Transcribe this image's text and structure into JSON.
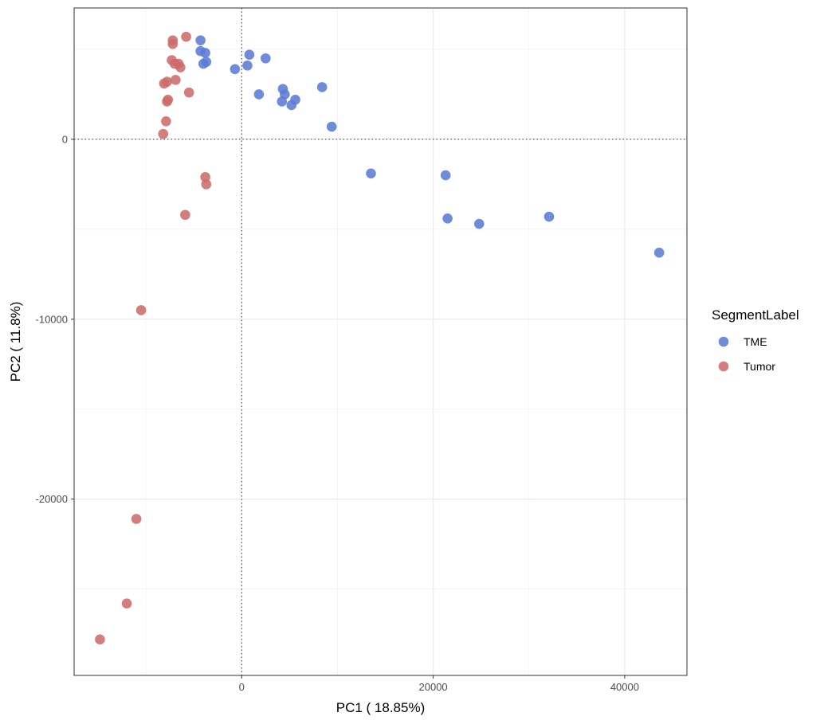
{
  "chart_data": {
    "type": "scatter",
    "xlabel": "PC1 ( 18.85%)",
    "ylabel": "PC2 ( 11.8%)",
    "xlim": [
      -17500,
      46500
    ],
    "ylim": [
      -29800,
      7300
    ],
    "x_ticks": [
      0,
      20000,
      40000
    ],
    "x_tick_labels": [
      "0",
      "20000",
      "40000"
    ],
    "y_ticks": [
      0,
      -10000,
      -20000
    ],
    "y_tick_labels": [
      "0",
      "-10000",
      "-20000"
    ],
    "x_minor_grid": [
      -10000,
      10000,
      30000
    ],
    "y_minor_grid": [
      5000,
      -5000,
      -15000,
      -25000
    ],
    "reference_lines": {
      "x": 0,
      "y": 0,
      "style": "dotted"
    },
    "grid": true,
    "legend": {
      "title": "SegmentLabel",
      "position": "right"
    },
    "series": [
      {
        "name": "TME",
        "color": "#5B7BD5",
        "points": [
          [
            -4300,
            5500
          ],
          [
            -4300,
            4900
          ],
          [
            -3800,
            4800
          ],
          [
            -4000,
            4200
          ],
          [
            -3700,
            4300
          ],
          [
            -700,
            3900
          ],
          [
            600,
            4100
          ],
          [
            800,
            4700
          ],
          [
            2500,
            4500
          ],
          [
            1800,
            2500
          ],
          [
            4300,
            2800
          ],
          [
            4500,
            2500
          ],
          [
            4200,
            2100
          ],
          [
            5200,
            1900
          ],
          [
            5600,
            2200
          ],
          [
            8400,
            2900
          ],
          [
            9400,
            700
          ],
          [
            13500,
            -1900
          ],
          [
            21300,
            -2000
          ],
          [
            21500,
            -4400
          ],
          [
            24800,
            -4700
          ],
          [
            32100,
            -4300
          ],
          [
            43600,
            -6300
          ]
        ]
      },
      {
        "name": "Tumor",
        "color": "#CD6B6B",
        "points": [
          [
            -5800,
            5700
          ],
          [
            -7200,
            5500
          ],
          [
            -7200,
            5300
          ],
          [
            -7300,
            4400
          ],
          [
            -7000,
            4200
          ],
          [
            -6600,
            4200
          ],
          [
            -6400,
            4000
          ],
          [
            -6900,
            3300
          ],
          [
            -7800,
            3200
          ],
          [
            -8100,
            3100
          ],
          [
            -5500,
            2600
          ],
          [
            -7700,
            2200
          ],
          [
            -7800,
            2100
          ],
          [
            -7900,
            1000
          ],
          [
            -8200,
            300
          ],
          [
            -3800,
            -2100
          ],
          [
            -3700,
            -2500
          ],
          [
            -5900,
            -4200
          ],
          [
            -10500,
            -9500
          ],
          [
            -11000,
            -21100
          ],
          [
            -12000,
            -25800
          ],
          [
            -14800,
            -27800
          ]
        ]
      }
    ]
  }
}
